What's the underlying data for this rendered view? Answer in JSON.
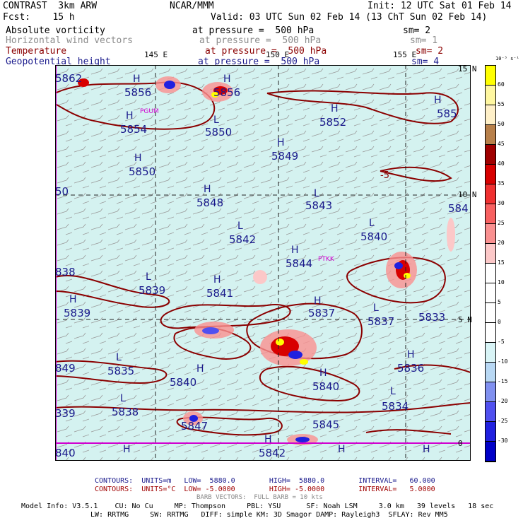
{
  "header": {
    "left_title": "CONTRAST  3km ARW",
    "center_title": "NCAR/MMM",
    "init": "Init: 12 UTC Sat 01 Feb 14",
    "fcst": "Fcst:    15 h",
    "valid": "Valid: 03 UTC Sun 02 Feb 14 (13 ChT Sun 02 Feb 14)"
  },
  "fields": [
    {
      "name": "Absolute vorticity",
      "level": "at pressure =  500 hPa",
      "sm": "sm= 2",
      "color": "#000000"
    },
    {
      "name": "Horizontal wind vectors",
      "level": "at pressure =  500 hPa",
      "sm": "sm= 1",
      "color": "#8c8c8c"
    },
    {
      "name": "Temperature",
      "level": "at pressure =  500 hPa",
      "sm": "sm= 2",
      "color": "#8b0000"
    },
    {
      "name": "Geopotential height",
      "level": "at pressure =  500 hPa",
      "sm": "sm= 4",
      "color": "#1a1a8c"
    }
  ],
  "map": {
    "background_color": "#d4f2f0",
    "lon_labels": [
      "145 E",
      "150 E",
      "155 E"
    ],
    "lat_labels": [
      "15 N",
      "10 N",
      "5 N",
      "0"
    ],
    "stations": [
      "PGUM",
      "PTKK"
    ],
    "height_labels": [
      {
        "text": "5862"
      },
      {
        "text": "5856"
      },
      {
        "text": "5856"
      },
      {
        "text": "5854"
      },
      {
        "text": "5850"
      },
      {
        "text": "5852"
      },
      {
        "text": "585"
      },
      {
        "text": "5849"
      },
      {
        "text": "5850"
      },
      {
        "text": "5848"
      },
      {
        "text": "5843"
      },
      {
        "text": "584"
      },
      {
        "text": "5840"
      },
      {
        "text": "5842"
      },
      {
        "text": "5844"
      },
      {
        "text": "5839"
      },
      {
        "text": "5841"
      },
      {
        "text": "5839"
      },
      {
        "text": "5837"
      },
      {
        "text": "5837"
      },
      {
        "text": "5833"
      },
      {
        "text": "5835"
      },
      {
        "text": "5836"
      },
      {
        "text": "5840"
      },
      {
        "text": "5840"
      },
      {
        "text": "5838"
      },
      {
        "text": "5834"
      },
      {
        "text": "5847"
      },
      {
        "text": "5845"
      },
      {
        "text": "5842"
      },
      {
        "text": "840"
      },
      {
        "text": "849"
      },
      {
        "text": "339"
      },
      {
        "text": "838"
      },
      {
        "text": "50"
      }
    ],
    "hl_markers": [
      "H",
      "L"
    ],
    "temp_label": "-5"
  },
  "colorbar": {
    "unit": "10⁻⁵ s⁻¹",
    "levels": [
      "60",
      "55",
      "50",
      "45",
      "40",
      "35",
      "30",
      "25",
      "20",
      "15",
      "10",
      "5",
      "0",
      "-5",
      "-10",
      "-15",
      "-20",
      "-25",
      "-30"
    ],
    "colors": [
      "#ffff00",
      "#fff7a0",
      "#fff0c8",
      "#b8804a",
      "#a00000",
      "#d80000",
      "#f03030",
      "#f86060",
      "#fa9090",
      "#fcc8c8",
      "#ffffff",
      "#ffffff",
      "#ffffff",
      "#ffffff",
      "#d8f4f6",
      "#b8d8f4",
      "#8090f0",
      "#5050f0",
      "#2020e0",
      "#0000c8"
    ]
  },
  "footer": {
    "line1_blue": "CONTOURS:  UNITS=m   LOW=  5880.0        HIGH=  5880.0        INTERVAL=   60.000",
    "line2_red": "CONTOURS:  UNITS=°C  LOW= -5.0000        HIGH= -5.0000        INTERVAL=   5.0000",
    "line3_gray": "BARB VECTORS:  FULL BARB = 10 kts",
    "model_info": "Model Info: V3.5.1    CU: No Cu     MP: Thompson     PBL: YSU      SF: Noah LSM     3.0 km   39 levels   18 sec",
    "model_info2": "LW: RRTMG     SW: RRTMG   DIFF: simple KM: 3D Smagor DAMP: Rayleigh3  SFLAY: Rev MM5"
  }
}
